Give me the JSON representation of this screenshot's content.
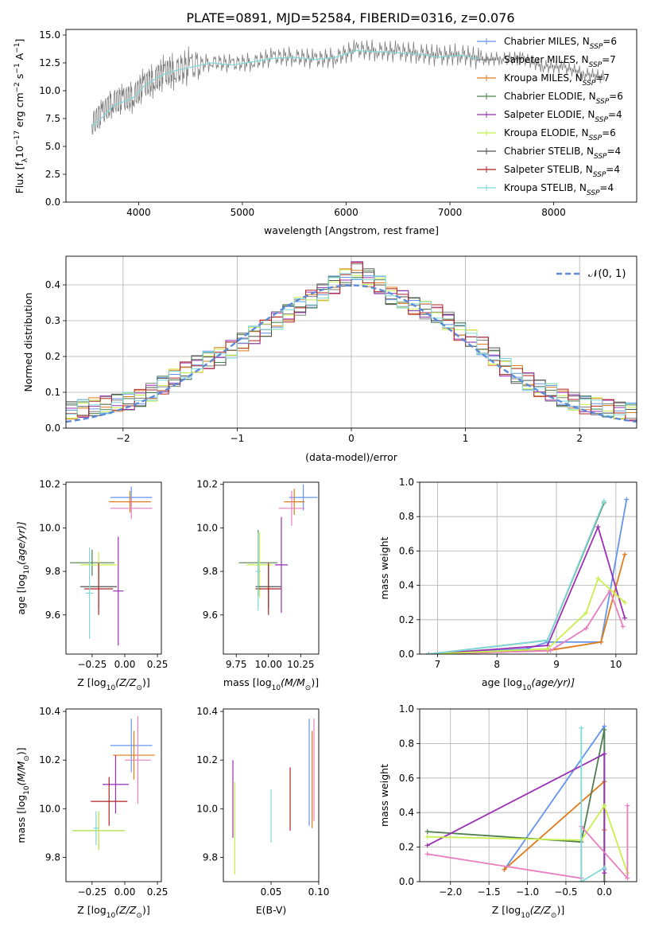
{
  "figure": {
    "title": "PLATE=0891, MJD=52584, FIBERID=0316, z=0.076"
  },
  "legend_entries": [
    {
      "model": "Chabrier MILES",
      "nssp": "6",
      "color": "#6495ed"
    },
    {
      "model": "Salpeter MILES",
      "nssp": "7",
      "color": "#808080"
    },
    {
      "model": "Kroupa MILES",
      "nssp": "7",
      "color": "#e07b1a"
    },
    {
      "model": "Chabrier ELODIE",
      "nssp": "6",
      "color": "#4e7d4e"
    },
    {
      "model": "Salpeter ELODIE",
      "nssp": "4",
      "color": "#9b30b5"
    },
    {
      "model": "Kroupa ELODIE",
      "nssp": "6",
      "color": "#c8f04a"
    },
    {
      "model": "Chabrier STELIB",
      "nssp": "4",
      "color": "#505050"
    },
    {
      "model": "Salpeter STELIB",
      "nssp": "4",
      "color": "#b22222"
    },
    {
      "model": "Kroupa STELIB",
      "nssp": "4",
      "color": "#7fd8d8"
    }
  ],
  "chart_data": [
    {
      "id": "spectrum",
      "type": "line",
      "xlabel": "wavelength [Angstrom, rest frame]",
      "ylabel_main": "Flux [f",
      "ylabel_tail": "10",
      "ylabel_exp": "−17",
      "ylabel_unit": " erg cm",
      "ylabel_exp2": "−2",
      "ylabel_unit2": " s",
      "ylabel_exp3": "−1",
      "ylabel_unit3": " A",
      "ylabel_exp4": "−1",
      "ylabel_end": "]",
      "xlim": [
        3300,
        8800
      ],
      "ylim": [
        0,
        15.5
      ],
      "xticks": [
        4000,
        5000,
        6000,
        7000,
        8000
      ],
      "yticks": [
        "0.0",
        "2.5",
        "5.0",
        "7.5",
        "10.0",
        "12.5",
        "15.0"
      ],
      "ytick_values": [
        0,
        2.5,
        5,
        7.5,
        10,
        12.5,
        15
      ],
      "data_series": {
        "name": "data",
        "color": "#808080",
        "x": [
          3550,
          3650,
          3750,
          3850,
          3950,
          4050,
          4150,
          4250,
          4350,
          4500,
          4700,
          4900,
          5100,
          5300,
          5500,
          5700,
          5900,
          6100,
          6300,
          6500,
          6700,
          6900,
          7100,
          7300,
          7500,
          7700,
          7900,
          8100,
          8300,
          8500
        ],
        "y": [
          7.0,
          8.0,
          9.0,
          9.2,
          9.5,
          10.5,
          11.0,
          11.6,
          11.8,
          12.2,
          12.6,
          12.4,
          12.6,
          13.0,
          13.1,
          12.8,
          13.0,
          13.7,
          13.6,
          13.5,
          13.4,
          13.1,
          13.3,
          12.8,
          12.9,
          12.9,
          12.2,
          12.1,
          11.5,
          11.2
        ]
      },
      "model_series": {
        "name": "models",
        "color": "#7fd8d8",
        "x": [
          3550,
          3650,
          3750,
          3850,
          3950,
          4050,
          4150,
          4250,
          4350,
          4500,
          4700,
          4900,
          5100,
          5300,
          5500,
          5700,
          5900,
          6100,
          6300,
          6500,
          6700,
          6900,
          7100,
          7300
        ],
        "y": [
          6.8,
          7.6,
          8.6,
          9.0,
          9.4,
          10.4,
          11.0,
          11.5,
          11.8,
          12.1,
          12.5,
          12.3,
          12.6,
          12.9,
          13.0,
          12.8,
          13.0,
          13.6,
          13.5,
          13.4,
          13.3,
          13.0,
          13.2,
          12.8
        ]
      }
    },
    {
      "id": "residuals",
      "type": "line",
      "xlabel": "(data-model)/error",
      "ylabel": "Normed distribution",
      "xlim": [
        -2.5,
        2.5
      ],
      "ylim": [
        0,
        0.48
      ],
      "xticks": [
        "−2",
        "−1",
        "0",
        "1",
        "2"
      ],
      "xtick_values": [
        -2,
        -1,
        0,
        1,
        2
      ],
      "yticks": [
        "0.0",
        "0.1",
        "0.2",
        "0.3",
        "0.4"
      ],
      "ytick_values": [
        0,
        0.1,
        0.2,
        0.3,
        0.4
      ],
      "grid": true,
      "legend_label": "𝒩(0, 1)",
      "legend_position": "top-right",
      "gaussian": {
        "mean": 0,
        "sigma": 1,
        "color": "#5b8bd9"
      },
      "hist_bins": [
        -2.5,
        -2.4,
        -2.3,
        -2.2,
        -2.1,
        -2.0,
        -1.9,
        -1.8,
        -1.7,
        -1.6,
        -1.5,
        -1.4,
        -1.3,
        -1.2,
        -1.1,
        -1.0,
        -0.9,
        -0.8,
        -0.7,
        -0.6,
        -0.5,
        -0.4,
        -0.3,
        -0.2,
        -0.1,
        0.0,
        0.1,
        0.2,
        0.3,
        0.4,
        0.5,
        0.6,
        0.7,
        0.8,
        0.9,
        1.0,
        1.1,
        1.2,
        1.3,
        1.4,
        1.5,
        1.6,
        1.7,
        1.8,
        1.9,
        2.0,
        2.1,
        2.2,
        2.3,
        2.4,
        2.5
      ],
      "hist_values": [
        0.05,
        0.055,
        0.06,
        0.065,
        0.07,
        0.075,
        0.085,
        0.1,
        0.12,
        0.14,
        0.16,
        0.18,
        0.19,
        0.2,
        0.22,
        0.24,
        0.26,
        0.28,
        0.3,
        0.32,
        0.34,
        0.36,
        0.38,
        0.4,
        0.42,
        0.44,
        0.42,
        0.4,
        0.37,
        0.36,
        0.34,
        0.33,
        0.32,
        0.3,
        0.27,
        0.25,
        0.23,
        0.2,
        0.17,
        0.15,
        0.13,
        0.11,
        0.1,
        0.085,
        0.075,
        0.065,
        0.06,
        0.055,
        0.05,
        0.045
      ]
    },
    {
      "id": "age-vs-z",
      "type": "scatter",
      "xlabel": "Z [log",
      "xlabel_sub": "10",
      "xlabel_rest": "(Z/Z",
      "xlabel_end": ")]",
      "ylabel": "age  [log",
      "ylabel_sub": "10",
      "ylabel_rest": "(age/yr)]",
      "xlim": [
        -0.45,
        0.28
      ],
      "ylim": [
        9.42,
        10.21
      ],
      "xticks": [
        "−0.25",
        "0.00",
        "0.25"
      ],
      "xtick_values": [
        -0.25,
        0,
        0.25
      ],
      "yticks": [
        "9.6",
        "9.8",
        "10.0",
        "10.2"
      ],
      "ytick_values": [
        9.6,
        9.8,
        10.0,
        10.2
      ],
      "points": [
        {
          "x": 0.05,
          "y": 10.14,
          "xerr": 0.16,
          "yerr": 0.05,
          "color": "#6495ed"
        },
        {
          "x": 0.04,
          "y": 10.12,
          "xerr": 0.16,
          "yerr": 0.05,
          "color": "#e07b1a"
        },
        {
          "x": 0.05,
          "y": 10.09,
          "xerr": 0.16,
          "yerr": 0.05,
          "color": "#e87fbf"
        },
        {
          "x": -0.25,
          "y": 9.84,
          "xerr": 0.17,
          "yerr": 0.06,
          "color": "#4e7d4e"
        },
        {
          "x": -0.2,
          "y": 9.83,
          "xerr": 0.14,
          "yerr": 0.06,
          "color": "#c8f04a"
        },
        {
          "x": -0.2,
          "y": 9.73,
          "xerr": 0.14,
          "yerr": 0.1,
          "color": "#505050"
        },
        {
          "x": -0.2,
          "y": 9.72,
          "xerr": 0.11,
          "yerr": 0.12,
          "color": "#b22222"
        },
        {
          "x": -0.05,
          "y": 9.71,
          "xerr": 0.04,
          "yerr": 0.25,
          "color": "#9b30b5"
        },
        {
          "x": -0.27,
          "y": 9.7,
          "xerr": 0.03,
          "yerr": 0.21,
          "color": "#7fd8d8"
        }
      ]
    },
    {
      "id": "age-vs-mass",
      "type": "scatter",
      "xlabel": "mass [log",
      "xlabel_sub": "10",
      "xlabel_rest": "(M/M",
      "xlabel_end": ")]",
      "xlim": [
        9.65,
        10.39
      ],
      "ylim": [
        9.42,
        10.21
      ],
      "xticks": [
        "9.75",
        "10.00",
        "10.25"
      ],
      "xtick_values": [
        9.75,
        10.0,
        10.25
      ],
      "yticks": [
        "9.6",
        "9.8",
        "10.0",
        "10.2"
      ],
      "ytick_values": [
        9.6,
        9.8,
        10.0,
        10.2
      ],
      "points": [
        {
          "x": 10.27,
          "y": 10.14,
          "xerr": 0.11,
          "yerr": 0.06,
          "color": "#6495ed"
        },
        {
          "x": 10.2,
          "y": 10.12,
          "xerr": 0.08,
          "yerr": 0.06,
          "color": "#e07b1a"
        },
        {
          "x": 10.18,
          "y": 10.09,
          "xerr": 0.1,
          "yerr": 0.08,
          "color": "#e87fbf"
        },
        {
          "x": 9.92,
          "y": 9.84,
          "xerr": 0.15,
          "yerr": 0.15,
          "color": "#4e7d4e"
        },
        {
          "x": 9.93,
          "y": 9.83,
          "xerr": 0.1,
          "yerr": 0.15,
          "color": "#c8f04a"
        },
        {
          "x": 10.0,
          "y": 9.73,
          "xerr": 0.1,
          "yerr": 0.1,
          "color": "#505050"
        },
        {
          "x": 10.0,
          "y": 9.72,
          "xerr": 0.1,
          "yerr": 0.12,
          "color": "#b22222"
        },
        {
          "x": 10.1,
          "y": 9.83,
          "xerr": 0.05,
          "yerr": 0.22,
          "color": "#9b30b5"
        },
        {
          "x": 9.92,
          "y": 9.8,
          "xerr": 0.02,
          "yerr": 0.18,
          "color": "#7fd8d8"
        }
      ]
    },
    {
      "id": "massweight-vs-age",
      "type": "line",
      "xlabel": "age  [log",
      "xlabel_sub": "10",
      "xlabel_rest": "(age/yr)]",
      "ylabel": "mass weight",
      "xlim": [
        6.7,
        10.35
      ],
      "ylim": [
        0,
        1
      ],
      "xticks": [
        "7",
        "8",
        "9",
        "10"
      ],
      "xtick_values": [
        7,
        8,
        9,
        10
      ],
      "yticks": [
        "0.0",
        "0.2",
        "0.4",
        "0.6",
        "0.8",
        "1.0"
      ],
      "ytick_values": [
        0,
        0.2,
        0.4,
        0.6,
        0.8,
        1.0
      ],
      "grid": true,
      "series": [
        {
          "color": "#6495ed",
          "x": [
            6.85,
            8.5,
            8.85,
            9.75,
            10.18
          ],
          "y": [
            0.0,
            0.03,
            0.07,
            0.07,
            0.9
          ]
        },
        {
          "color": "#e07b1a",
          "x": [
            6.85,
            8.85,
            9.75,
            10.15
          ],
          "y": [
            0.0,
            0.02,
            0.07,
            0.58
          ]
        },
        {
          "color": "#e87fbf",
          "x": [
            6.85,
            8.9,
            9.5,
            9.9,
            10.12
          ],
          "y": [
            0.0,
            0.02,
            0.15,
            0.37,
            0.16
          ]
        },
        {
          "color": "#4e7d4e",
          "x": [
            6.85,
            8.85,
            9.8
          ],
          "y": [
            0.0,
            0.08,
            0.88
          ]
        },
        {
          "color": "#9b30b5",
          "x": [
            6.85,
            8.85,
            9.7,
            10.15
          ],
          "y": [
            0.0,
            0.05,
            0.74,
            0.21
          ]
        },
        {
          "color": "#c8f04a",
          "x": [
            6.85,
            8.85,
            9.5,
            9.7,
            10.15
          ],
          "y": [
            0.0,
            0.03,
            0.24,
            0.44,
            0.3
          ]
        },
        {
          "color": "#7fd8d8",
          "x": [
            6.85,
            8.85,
            9.8
          ],
          "y": [
            0.0,
            0.08,
            0.89
          ]
        }
      ]
    },
    {
      "id": "mass-vs-z",
      "type": "scatter",
      "xlabel": "Z [log",
      "xlabel_sub": "10",
      "xlabel_rest": "(Z/Z",
      "xlabel_end": ")]",
      "ylabel": "mass [log",
      "ylabel_sub": "10",
      "ylabel_rest": "(M/M",
      "ylabel_end": ")]",
      "xlim": [
        -0.45,
        0.28
      ],
      "ylim": [
        9.7,
        10.41
      ],
      "xticks": [
        "−0.25",
        "0.00",
        "0.25"
      ],
      "xtick_values": [
        -0.25,
        0,
        0.25
      ],
      "yticks": [
        "9.8",
        "10.0",
        "10.2",
        "10.4"
      ],
      "ytick_values": [
        9.8,
        10.0,
        10.2,
        10.4
      ],
      "points": [
        {
          "x": 0.05,
          "y": 10.26,
          "xerr": 0.16,
          "yerr": 0.11,
          "color": "#6495ed"
        },
        {
          "x": 0.07,
          "y": 10.22,
          "xerr": 0.16,
          "yerr": 0.1,
          "color": "#e07b1a"
        },
        {
          "x": 0.1,
          "y": 10.2,
          "xerr": 0.1,
          "yerr": 0.18,
          "color": "#e87fbf"
        },
        {
          "x": -0.07,
          "y": 10.1,
          "xerr": 0.1,
          "yerr": 0.12,
          "color": "#9b30b5"
        },
        {
          "x": -0.12,
          "y": 10.03,
          "xerr": 0.14,
          "yerr": 0.1,
          "color": "#b22222"
        },
        {
          "x": -0.2,
          "y": 9.91,
          "xerr": 0.2,
          "yerr": 0.08,
          "color": "#4e7d4e"
        },
        {
          "x": -0.2,
          "y": 9.91,
          "xerr": 0.2,
          "yerr": 0.08,
          "color": "#c8f04a"
        },
        {
          "x": -0.22,
          "y": 9.92,
          "xerr": 0.02,
          "yerr": 0.07,
          "color": "#7fd8d8"
        }
      ]
    },
    {
      "id": "mass-vs-ebv",
      "type": "scatter",
      "xlabel": "E(B-V)",
      "xlim": [
        0.0,
        0.1
      ],
      "ylim": [
        9.7,
        10.41
      ],
      "xticks": [
        "0.05",
        "0.10"
      ],
      "xtick_values": [
        0.05,
        0.1
      ],
      "yticks": [
        "9.8",
        "10.0",
        "10.2",
        "10.4"
      ],
      "ytick_values": [
        9.8,
        10.0,
        10.2,
        10.4
      ],
      "points": [
        {
          "x": 0.09,
          "y": 10.15,
          "yerr": 0.22,
          "color": "#6495ed"
        },
        {
          "x": 0.093,
          "y": 10.12,
          "yerr": 0.2,
          "color": "#e07b1a"
        },
        {
          "x": 0.095,
          "y": 10.16,
          "yerr": 0.21,
          "color": "#e87fbf"
        },
        {
          "x": 0.07,
          "y": 10.04,
          "yerr": 0.13,
          "color": "#b22222"
        },
        {
          "x": 0.05,
          "y": 9.97,
          "yerr": 0.11,
          "color": "#7fd8d8"
        },
        {
          "x": 0.01,
          "y": 10.04,
          "yerr": 0.16,
          "color": "#9b30b5"
        },
        {
          "x": 0.012,
          "y": 9.92,
          "yerr": 0.19,
          "color": "#c8f04a"
        }
      ]
    },
    {
      "id": "massweight-vs-z",
      "type": "line",
      "xlabel": "Z [log",
      "xlabel_sub": "10",
      "xlabel_rest": "(Z/Z",
      "xlabel_end": ")]",
      "ylabel": "mass weight",
      "xlim": [
        -2.4,
        0.42
      ],
      "ylim": [
        0,
        1
      ],
      "xticks": [
        "−2.0",
        "−1.5",
        "−1.0",
        "−0.5",
        "0.0"
      ],
      "xtick_values": [
        -2.0,
        -1.5,
        -1.0,
        -0.5,
        0.0
      ],
      "yticks": [
        "0.0",
        "0.2",
        "0.4",
        "0.6",
        "0.8",
        "1.0"
      ],
      "ytick_values": [
        0,
        0.2,
        0.4,
        0.6,
        0.8,
        1.0
      ],
      "grid": true,
      "series": [
        {
          "color": "#6495ed",
          "x": [
            -1.3,
            0.0,
            0.0,
            0.0
          ],
          "y": [
            0.07,
            0.9,
            0.07,
            0.0
          ]
        },
        {
          "color": "#e07b1a",
          "x": [
            -1.3,
            0.0,
            0.0,
            0.0
          ],
          "y": [
            0.07,
            0.58,
            0.3,
            0.0
          ]
        },
        {
          "color": "#4e7d4e",
          "x": [
            -2.3,
            -0.3,
            0.0,
            0.0
          ],
          "y": [
            0.29,
            0.23,
            0.88,
            0.0
          ]
        },
        {
          "color": "#9b30b5",
          "x": [
            -2.3,
            0.0,
            0.0
          ],
          "y": [
            0.21,
            0.74,
            0.05
          ]
        },
        {
          "color": "#c8f04a",
          "x": [
            -2.3,
            -0.3,
            0.0,
            0.3
          ],
          "y": [
            0.26,
            0.24,
            0.44,
            0.05
          ]
        },
        {
          "color": "#e87fbf",
          "x": [
            -2.3,
            -0.3,
            -0.3,
            0.3,
            0.3
          ],
          "y": [
            0.16,
            0.02,
            0.32,
            0.02,
            0.44
          ]
        },
        {
          "color": "#7fd8d8",
          "x": [
            -0.3,
            -0.3,
            0.0
          ],
          "y": [
            0.89,
            0.0,
            0.08
          ]
        }
      ]
    }
  ]
}
